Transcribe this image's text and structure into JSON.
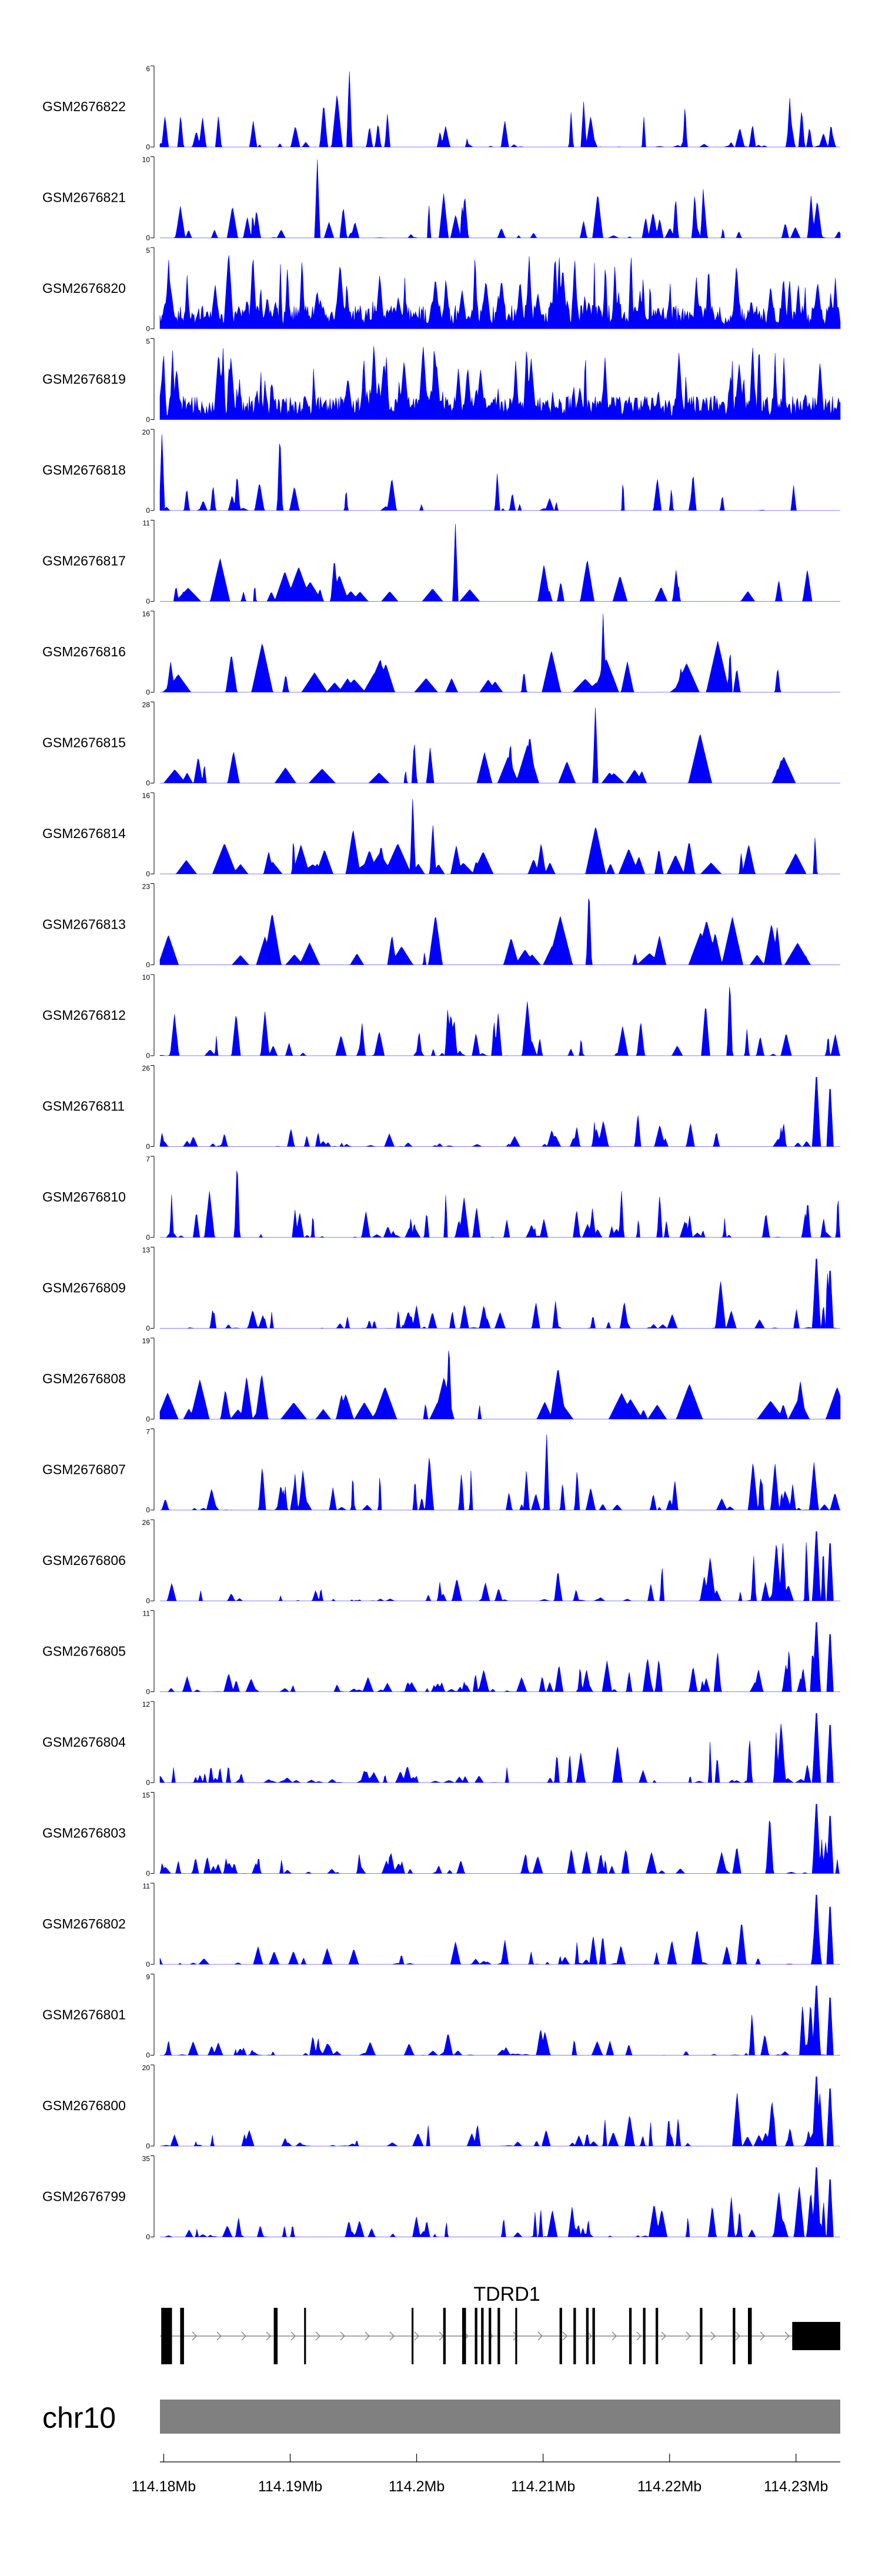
{
  "chart_data": {
    "type": "area",
    "chromosome": "chr10",
    "xlim": [
      114.1797,
      114.2335
    ],
    "x_ticks": [
      {
        "value": 114.18,
        "label": "114.18Mb"
      },
      {
        "value": 114.19,
        "label": "114.19Mb"
      },
      {
        "value": 114.2,
        "label": "114.2Mb"
      },
      {
        "value": 114.21,
        "label": "114.21Mb"
      },
      {
        "value": 114.22,
        "label": "114.22Mb"
      },
      {
        "value": 114.23,
        "label": "114.23Mb"
      }
    ],
    "tracks": [
      {
        "name": "GSM2676822",
        "ymax": 6,
        "ymax_label": "6",
        "seed": 11,
        "density": 60,
        "profile": "flat"
      },
      {
        "name": "GSM2676821",
        "ymax": 10,
        "ymax_label": "10",
        "seed": 12,
        "density": 56,
        "profile": "flat"
      },
      {
        "name": "GSM2676820",
        "ymax": 5,
        "ymax_label": "5",
        "seed": 13,
        "density": 90,
        "profile": "dense"
      },
      {
        "name": "GSM2676819",
        "ymax": 5,
        "ymax_label": "5",
        "seed": 14,
        "density": 85,
        "profile": "dense"
      },
      {
        "name": "GSM2676818",
        "ymax": 20,
        "ymax_label": "20",
        "seed": 15,
        "density": 34,
        "profile": "leftpeak"
      },
      {
        "name": "GSM2676817",
        "ymax": 11,
        "ymax_label": "11",
        "seed": 16,
        "density": 30,
        "profile": "sparse"
      },
      {
        "name": "GSM2676816",
        "ymax": 16,
        "ymax_label": "16",
        "seed": 17,
        "density": 36,
        "profile": "sparse"
      },
      {
        "name": "GSM2676815",
        "ymax": 28,
        "ymax_label": "28",
        "seed": 18,
        "density": 26,
        "profile": "sparse"
      },
      {
        "name": "GSM2676814",
        "ymax": 16,
        "ymax_label": "16",
        "seed": 19,
        "density": 40,
        "profile": "sparse"
      },
      {
        "name": "GSM2676813",
        "ymax": 23,
        "ymax_label": "23",
        "seed": 20,
        "density": 30,
        "profile": "sparse"
      },
      {
        "name": "GSM2676812",
        "ymax": 10,
        "ymax_label": "10",
        "seed": 21,
        "density": 58,
        "profile": "flat"
      },
      {
        "name": "GSM2676811",
        "ymax": 26,
        "ymax_label": "26",
        "seed": 22,
        "density": 55,
        "profile": "rightrise"
      },
      {
        "name": "GSM2676810",
        "ymax": 7,
        "ymax_label": "7",
        "seed": 23,
        "density": 70,
        "profile": "flat"
      },
      {
        "name": "GSM2676809",
        "ymax": 13,
        "ymax_label": "13",
        "seed": 24,
        "density": 62,
        "profile": "rightrise"
      },
      {
        "name": "GSM2676808",
        "ymax": 19,
        "ymax_label": "19",
        "seed": 25,
        "density": 36,
        "profile": "sparse"
      },
      {
        "name": "GSM2676807",
        "ymax": 7,
        "ymax_label": "7",
        "seed": 26,
        "density": 72,
        "profile": "flat"
      },
      {
        "name": "GSM2676806",
        "ymax": 26,
        "ymax_label": "26",
        "seed": 27,
        "density": 60,
        "profile": "rightrise"
      },
      {
        "name": "GSM2676805",
        "ymax": 11,
        "ymax_label": "11",
        "seed": 28,
        "density": 80,
        "profile": "rightrise"
      },
      {
        "name": "GSM2676804",
        "ymax": 12,
        "ymax_label": "12",
        "seed": 29,
        "density": 70,
        "profile": "rightrise"
      },
      {
        "name": "GSM2676803",
        "ymax": 15,
        "ymax_label": "15",
        "seed": 30,
        "density": 70,
        "profile": "rightrise"
      },
      {
        "name": "GSM2676802",
        "ymax": 11,
        "ymax_label": "11",
        "seed": 31,
        "density": 60,
        "profile": "rightrise"
      },
      {
        "name": "GSM2676801",
        "ymax": 9,
        "ymax_label": "9",
        "seed": 32,
        "density": 72,
        "profile": "rightrise"
      },
      {
        "name": "GSM2676800",
        "ymax": 20,
        "ymax_label": "20",
        "seed": 33,
        "density": 62,
        "profile": "rightrise"
      },
      {
        "name": "GSM2676799",
        "ymax": 35,
        "ymax_label": "35",
        "seed": 34,
        "density": 66,
        "profile": "rightrise"
      }
    ],
    "gene": {
      "name": "TDRD1",
      "start": 114.1797,
      "end": 114.2335,
      "strand": "+",
      "exons": [
        [
          114.1798,
          114.18065
        ],
        [
          114.1813,
          114.1816
        ],
        [
          114.1887,
          114.189
        ],
        [
          114.1911,
          114.19125
        ],
        [
          114.1996,
          114.19975
        ],
        [
          114.2021,
          114.2023
        ],
        [
          114.2036,
          114.2039
        ],
        [
          114.2046,
          114.2048
        ],
        [
          114.2051,
          114.2053
        ],
        [
          114.2057,
          114.2059
        ],
        [
          114.2064,
          114.2066
        ],
        [
          114.2078,
          114.20795
        ],
        [
          114.2113,
          114.2115
        ],
        [
          114.2124,
          114.2126
        ],
        [
          114.2134,
          114.2136
        ],
        [
          114.2139,
          114.2141
        ],
        [
          114.2168,
          114.217
        ],
        [
          114.2179,
          114.2181
        ],
        [
          114.2189,
          114.2191
        ],
        [
          114.2224,
          114.2226
        ],
        [
          114.225,
          114.2252
        ],
        [
          114.2262,
          114.2265
        ],
        [
          114.2297,
          114.2335
        ]
      ]
    },
    "colors": {
      "signal": "#0000ff",
      "gene": "#000000",
      "intron": "#888888",
      "ideogram": "#808080"
    }
  }
}
